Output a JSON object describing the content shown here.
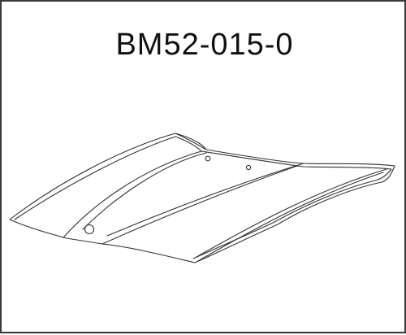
{
  "diagram": {
    "part_number": "BM52-015-0"
  }
}
